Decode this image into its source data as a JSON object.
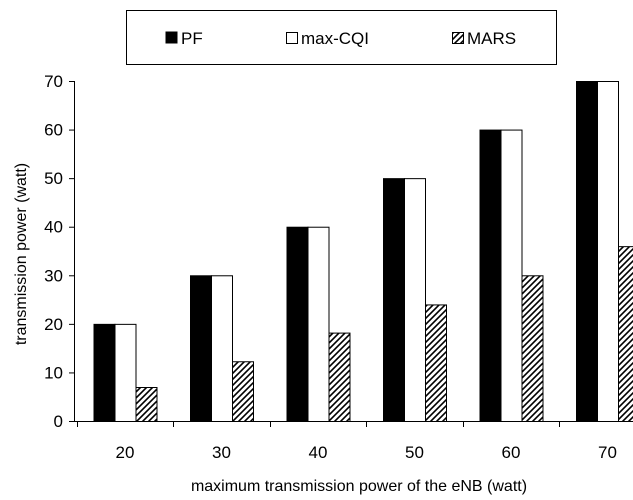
{
  "chart_data": {
    "type": "bar",
    "title": "",
    "xlabel": "maximum transmission power of the eNB (watt)",
    "ylabel": "transmission power (watt)",
    "categories": [
      "20",
      "30",
      "40",
      "50",
      "60",
      "70"
    ],
    "ylim": [
      0,
      70
    ],
    "yticks": [
      "0",
      "10",
      "20",
      "30",
      "40",
      "50",
      "60",
      "70"
    ],
    "grid": false,
    "legend_position": "top",
    "series": [
      {
        "name": "PF",
        "fill": "solid-black",
        "values": [
          20,
          30,
          40,
          50,
          60,
          70
        ]
      },
      {
        "name": "max-CQI",
        "fill": "white",
        "values": [
          20,
          30,
          40,
          50,
          60,
          70
        ]
      },
      {
        "name": "MARS",
        "fill": "diagonal-hatch",
        "values": [
          7,
          12.3,
          18.2,
          24,
          30,
          36
        ]
      }
    ]
  }
}
